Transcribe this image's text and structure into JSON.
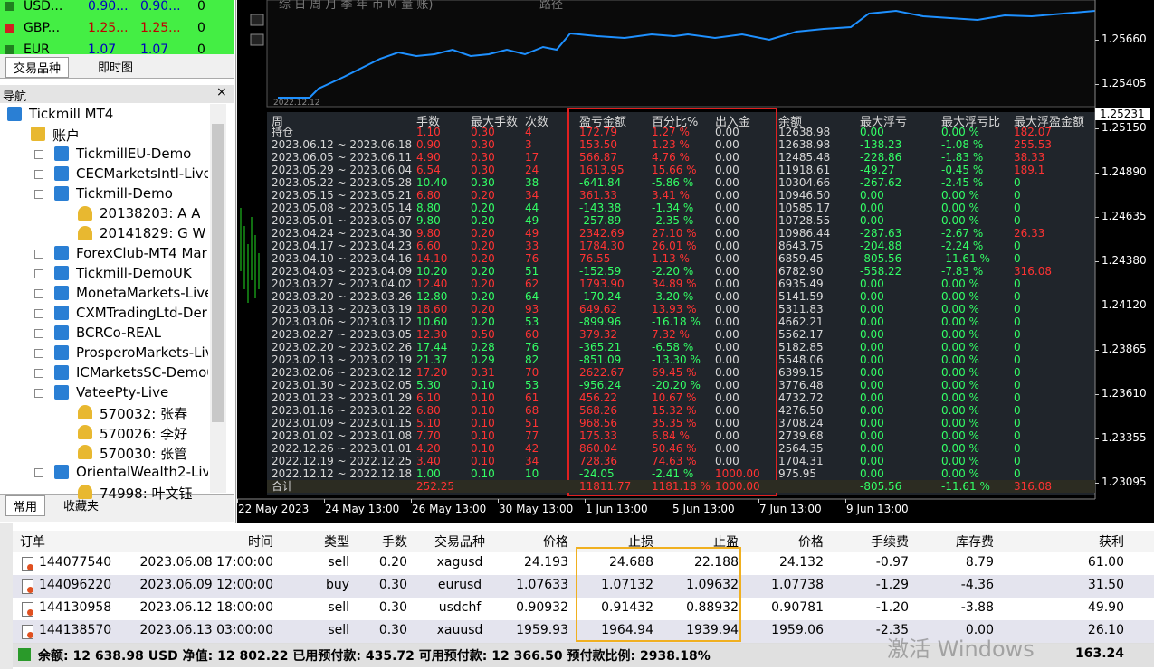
{
  "market_watch": {
    "rows": [
      [
        "USD...",
        "0.90...",
        "0.90...",
        "0"
      ],
      [
        "GBP...",
        "1.25...",
        "1.25...",
        "0"
      ],
      [
        "EUR",
        "1.07",
        "1.07",
        "0"
      ]
    ]
  },
  "market_tabs": [
    "交易品种",
    "即时图"
  ],
  "navigator": {
    "title": "导航",
    "items": [
      "Tickmill MT4",
      "账户",
      "TickmillEU-Demo",
      "CECMarketsIntl-Live",
      "Tickmill-Demo",
      "20138203: A A",
      "20141829: G W",
      "ForexClub-MT4 Mar",
      "Tickmill-DemoUK",
      "MonetaMarkets-Live",
      "CXMTradingLtd-Der",
      "BCRCo-REAL",
      "ProsperoMarkets-Liv",
      "ICMarketsSC-Demo0",
      "VateePty-Live",
      "570032: 张春",
      "570026: 李好",
      "570030: 张管",
      "OrientalWealth2-Live",
      "74998: 叶文钰"
    ]
  },
  "bottom_tabs": [
    "常用",
    "收藏夹"
  ],
  "chart": {
    "toolbar": "综 日 周 月 季 年 币 M 量 账)",
    "path_label": "路径",
    "mini_date": "2022.12.12",
    "price_labels": [
      "1.25660",
      "1.25405",
      "1.25150",
      "1.24890",
      "1.24635",
      "1.24380",
      "1.24120",
      "1.23865",
      "1.23610",
      "1.23355",
      "1.23095"
    ],
    "current_price": "1.25231",
    "time_labels": [
      "22 May 2023",
      "24 May 13:00",
      "26 May 13:00",
      "30 May 13:00",
      "1 Jun 13:00",
      "5 Jun 13:00",
      "7 Jun 13:00",
      "9 Jun 13:00"
    ]
  },
  "weekly_table": {
    "headers": [
      "周",
      "手数",
      "最大手数",
      "次数",
      "盈亏金额",
      "百分比%",
      "出入金",
      "余额",
      "最大浮亏",
      "最大浮亏比",
      "最大浮盈金额"
    ],
    "rows": [
      [
        "持仓",
        "1.10",
        "0.30",
        "4",
        "172.79",
        "1.27 %",
        "0.00",
        "12638.98",
        "0.00",
        "0.00 %",
        "182.07"
      ],
      [
        "2023.06.12 ~ 2023.06.18",
        "0.90",
        "0.30",
        "3",
        "153.50",
        "1.23 %",
        "0.00",
        "12638.98",
        "-138.23",
        "-1.08 %",
        "255.53"
      ],
      [
        "2023.06.05 ~ 2023.06.11",
        "4.90",
        "0.30",
        "17",
        "566.87",
        "4.76 %",
        "0.00",
        "12485.48",
        "-228.86",
        "-1.83 %",
        "38.33"
      ],
      [
        "2023.05.29 ~ 2023.06.04",
        "6.54",
        "0.30",
        "24",
        "1613.95",
        "15.66 %",
        "0.00",
        "11918.61",
        "-49.27",
        "-0.45 %",
        "189.1"
      ],
      [
        "2023.05.22 ~ 2023.05.28",
        "10.40",
        "0.30",
        "38",
        "-641.84",
        "-5.86 %",
        "0.00",
        "10304.66",
        "-267.62",
        "-2.45 %",
        "0"
      ],
      [
        "2023.05.15 ~ 2023.05.21",
        "6.80",
        "0.20",
        "34",
        "361.33",
        "3.41 %",
        "0.00",
        "10946.50",
        "0.00",
        "0.00 %",
        "0"
      ],
      [
        "2023.05.08 ~ 2023.05.14",
        "8.80",
        "0.20",
        "44",
        "-143.38",
        "-1.34 %",
        "0.00",
        "10585.17",
        "0.00",
        "0.00 %",
        "0"
      ],
      [
        "2023.05.01 ~ 2023.05.07",
        "9.80",
        "0.20",
        "49",
        "-257.89",
        "-2.35 %",
        "0.00",
        "10728.55",
        "0.00",
        "0.00 %",
        "0"
      ],
      [
        "2023.04.24 ~ 2023.04.30",
        "9.80",
        "0.20",
        "49",
        "2342.69",
        "27.10 %",
        "0.00",
        "10986.44",
        "-287.63",
        "-2.67 %",
        "26.33"
      ],
      [
        "2023.04.17 ~ 2023.04.23",
        "6.60",
        "0.20",
        "33",
        "1784.30",
        "26.01 %",
        "0.00",
        "8643.75",
        "-204.88",
        "-2.24 %",
        "0"
      ],
      [
        "2023.04.10 ~ 2023.04.16",
        "14.10",
        "0.20",
        "76",
        "76.55",
        "1.13 %",
        "0.00",
        "6859.45",
        "-805.56",
        "-11.61 %",
        "0"
      ],
      [
        "2023.04.03 ~ 2023.04.09",
        "10.20",
        "0.20",
        "51",
        "-152.59",
        "-2.20 %",
        "0.00",
        "6782.90",
        "-558.22",
        "-7.83 %",
        "316.08"
      ],
      [
        "2023.03.27 ~ 2023.04.02",
        "12.40",
        "0.20",
        "62",
        "1793.90",
        "34.89 %",
        "0.00",
        "6935.49",
        "0.00",
        "0.00 %",
        "0"
      ],
      [
        "2023.03.20 ~ 2023.03.26",
        "12.80",
        "0.20",
        "64",
        "-170.24",
        "-3.20 %",
        "0.00",
        "5141.59",
        "0.00",
        "0.00 %",
        "0"
      ],
      [
        "2023.03.13 ~ 2023.03.19",
        "18.60",
        "0.20",
        "93",
        "649.62",
        "13.93 %",
        "0.00",
        "5311.83",
        "0.00",
        "0.00 %",
        "0"
      ],
      [
        "2023.03.06 ~ 2023.03.12",
        "10.60",
        "0.20",
        "53",
        "-899.96",
        "-16.18 %",
        "0.00",
        "4662.21",
        "0.00",
        "0.00 %",
        "0"
      ],
      [
        "2023.02.27 ~ 2023.03.05",
        "12.30",
        "0.50",
        "60",
        "379.32",
        "7.32 %",
        "0.00",
        "5562.17",
        "0.00",
        "0.00 %",
        "0"
      ],
      [
        "2023.02.20 ~ 2023.02.26",
        "17.44",
        "0.28",
        "76",
        "-365.21",
        "-6.58 %",
        "0.00",
        "5182.85",
        "0.00",
        "0.00 %",
        "0"
      ],
      [
        "2023.02.13 ~ 2023.02.19",
        "21.37",
        "0.29",
        "82",
        "-851.09",
        "-13.30 %",
        "0.00",
        "5548.06",
        "0.00",
        "0.00 %",
        "0"
      ],
      [
        "2023.02.06 ~ 2023.02.12",
        "17.20",
        "0.31",
        "70",
        "2622.67",
        "69.45 %",
        "0.00",
        "6399.15",
        "0.00",
        "0.00 %",
        "0"
      ],
      [
        "2023.01.30 ~ 2023.02.05",
        "5.30",
        "0.10",
        "53",
        "-956.24",
        "-20.20 %",
        "0.00",
        "3776.48",
        "0.00",
        "0.00 %",
        "0"
      ],
      [
        "2023.01.23 ~ 2023.01.29",
        "6.10",
        "0.10",
        "61",
        "456.22",
        "10.67 %",
        "0.00",
        "4732.72",
        "0.00",
        "0.00 %",
        "0"
      ],
      [
        "2023.01.16 ~ 2023.01.22",
        "6.80",
        "0.10",
        "68",
        "568.26",
        "15.32 %",
        "0.00",
        "4276.50",
        "0.00",
        "0.00 %",
        "0"
      ],
      [
        "2023.01.09 ~ 2023.01.15",
        "5.10",
        "0.10",
        "51",
        "968.56",
        "35.35 %",
        "0.00",
        "3708.24",
        "0.00",
        "0.00 %",
        "0"
      ],
      [
        "2023.01.02 ~ 2023.01.08",
        "7.70",
        "0.10",
        "77",
        "175.33",
        "6.84 %",
        "0.00",
        "2739.68",
        "0.00",
        "0.00 %",
        "0"
      ],
      [
        "2022.12.26 ~ 2023.01.01",
        "4.20",
        "0.10",
        "42",
        "860.04",
        "50.46 %",
        "0.00",
        "2564.35",
        "0.00",
        "0.00 %",
        "0"
      ],
      [
        "2022.12.19 ~ 2022.12.25",
        "3.40",
        "0.10",
        "34",
        "728.36",
        "74.63 %",
        "0.00",
        "1704.31",
        "0.00",
        "0.00 %",
        "0"
      ],
      [
        "2022.12.12 ~ 2022.12.18",
        "1.00",
        "0.10",
        "10",
        "-24.05",
        "-2.41 %",
        "1000.00",
        "975.95",
        "0.00",
        "0.00 %",
        "0"
      ]
    ],
    "total": {
      "label": "合计",
      "lots": "252.25",
      "pnl": "11811.77",
      "pct": "1181.18 %",
      "inout": "1000.00",
      "max_float_loss": "-805.56",
      "max_float_loss_pct": "-11.61 %",
      "max_float_profit": "316.08"
    }
  },
  "terminal": {
    "headers": [
      "订单",
      "时间",
      "类型",
      "手数",
      "交易品种",
      "价格",
      "止损",
      "止盈",
      "价格",
      "手续费",
      "库存费",
      "获利"
    ],
    "rows": [
      [
        "144077540",
        "2023.06.08 17:00:00",
        "sell",
        "0.20",
        "xagusd",
        "24.193",
        "24.688",
        "22.188",
        "24.132",
        "-0.97",
        "8.79",
        "61.00"
      ],
      [
        "144096220",
        "2023.06.09 12:00:00",
        "buy",
        "0.30",
        "eurusd",
        "1.07633",
        "1.07132",
        "1.09632",
        "1.07738",
        "-1.29",
        "-4.36",
        "31.50"
      ],
      [
        "144130958",
        "2023.06.12 18:00:00",
        "sell",
        "0.30",
        "usdchf",
        "0.90932",
        "0.91432",
        "0.88932",
        "0.90781",
        "-1.20",
        "-3.88",
        "49.90"
      ],
      [
        "144138570",
        "2023.06.13 03:00:00",
        "sell",
        "0.30",
        "xauusd",
        "1959.93",
        "1964.94",
        "1939.94",
        "1959.06",
        "-2.35",
        "0.00",
        "26.10"
      ]
    ],
    "summary": "余额: 12 638.98 USD  净值: 12 802.22  已用预付款: 435.72  可用预付款: 12 366.50  预付款比例: 2938.18%",
    "total_profit": "163.24"
  },
  "watermark": "激活 Windows"
}
